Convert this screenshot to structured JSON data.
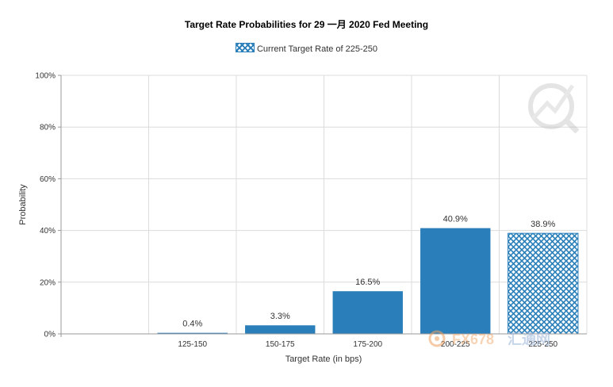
{
  "chart_data": {
    "type": "bar",
    "title": "Target Rate Probabilities for 29 一月 2020  Fed Meeting",
    "legend": [
      "Current Target Rate of 225-250"
    ],
    "legend_placement": "top-center",
    "categories": [
      "125-150",
      "150-175",
      "175-200",
      "200-225",
      "225-250"
    ],
    "values": [
      0.4,
      3.3,
      16.5,
      40.9,
      38.9
    ],
    "data_labels": [
      "0.4%",
      "3.3%",
      "16.5%",
      "40.9%",
      "38.9%"
    ],
    "highlighted_category": "225-250",
    "xlabel": "Target Rate (in bps)",
    "ylabel": "Probability",
    "ylim": [
      0,
      100
    ],
    "yticks": [
      "0%",
      "20%",
      "40%",
      "60%",
      "80%",
      "100%"
    ],
    "grid": true,
    "colors": {
      "bar": "#2a7fba",
      "grid": "#dcdcdc",
      "axis": "#999999"
    }
  },
  "watermark": {
    "brand_text": "FX678",
    "suffix_text": "汇通网"
  }
}
